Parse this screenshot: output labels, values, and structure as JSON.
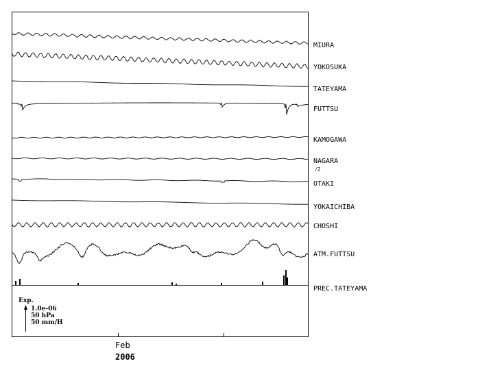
{
  "chart_data": {
    "type": "line",
    "title": "",
    "xlabel": "",
    "ylabel": "",
    "x_axis": {
      "month_label": "Feb",
      "year_label": "2006"
    },
    "grid": false,
    "legend": "none",
    "series": [
      {
        "name": "MIURA",
        "style": "wavy",
        "offset": 0.0,
        "amplitude": 1.8,
        "period": 13,
        "trend": 14.0
      },
      {
        "name": "YOKOSUKA",
        "style": "wavy",
        "offset": 0.0,
        "amplitude": 3.2,
        "period": 11,
        "trend": 18.0
      },
      {
        "name": "TATEYAMA",
        "style": "drift",
        "offset": 0.0,
        "amplitude": 0.4,
        "period": 20,
        "trend": 8.0
      },
      {
        "name": "FUTTSU",
        "style": "spiky",
        "offset": 0.0,
        "amplitude": 0.5,
        "period": 30,
        "trend": 0.0
      },
      {
        "name": "KAMOGAWA",
        "style": "flat",
        "offset": 0.0,
        "amplitude": 0.6,
        "period": 18,
        "trend": -1.0
      },
      {
        "name": "NAGARA",
        "style": "flat",
        "offset": 0.0,
        "amplitude": 0.7,
        "period": 25,
        "trend": 1.0,
        "scale_note": "/2"
      },
      {
        "name": "OTAKI",
        "style": "steps",
        "offset": 0.0,
        "amplitude": 0.5,
        "period": 22,
        "trend": 4.0
      },
      {
        "name": "YOKAICHIBA",
        "style": "drift",
        "offset": 0.0,
        "amplitude": 0.4,
        "period": 20,
        "trend": 6.0
      },
      {
        "name": "CHOSHI",
        "style": "wavy",
        "offset": 0.0,
        "amplitude": 3.0,
        "period": 12,
        "trend": 0.0
      },
      {
        "name": "ATM.FUTTSU",
        "style": "pressure",
        "offset": 0.0,
        "amplitude": 9.0,
        "period": 60,
        "trend": 0.0
      },
      {
        "name": "PREC.TATEYAMA",
        "style": "bars",
        "offset": 0.0,
        "amplitude": 1.0,
        "period": 0,
        "trend": 0.0
      }
    ],
    "scale_legend": {
      "title": "Exp.",
      "lines": [
        "1.0e-06",
        "50 hPa",
        "50 mm/H"
      ]
    }
  }
}
